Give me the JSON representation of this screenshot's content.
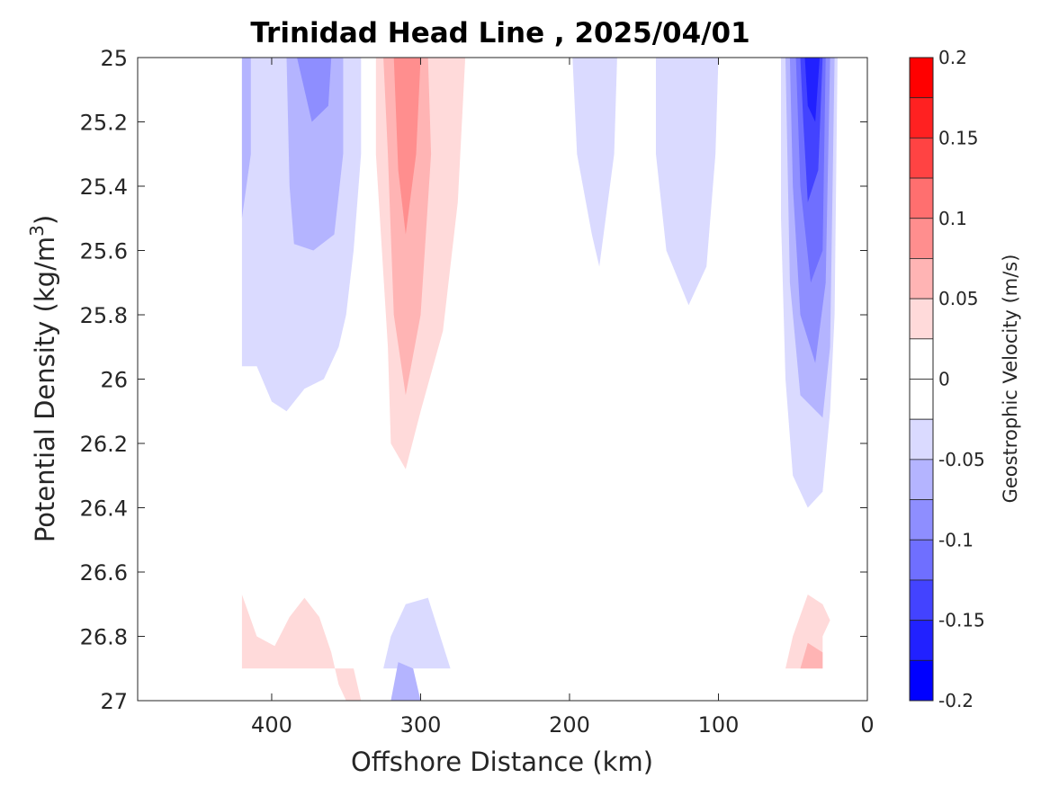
{
  "chart_data": {
    "type": "contour",
    "title": "Trinidad Head Line , 2025/04/01",
    "xlabel": "Offshore Distance (km)",
    "ylabel_main": "Potential Density (kg/m",
    "ylabel_sup": "3",
    "ylabel_close": ")",
    "colorbar_label": "Geostrophic Velocity (m/s)",
    "xlim": [
      490,
      0
    ],
    "ylim": [
      27,
      25
    ],
    "x_reversed": true,
    "y_reversed": true,
    "xticks": [
      400,
      300,
      200,
      100,
      0
    ],
    "yticks": [
      25,
      25.2,
      25.4,
      25.6,
      25.8,
      26,
      26.2,
      26.4,
      26.6,
      26.8,
      27
    ],
    "colorbar_ticks": [
      {
        "value": 0.2,
        "label": "0.2"
      },
      {
        "value": 0.15,
        "label": "0.15"
      },
      {
        "value": 0.1,
        "label": "0.1"
      },
      {
        "value": 0.05,
        "label": "0.05"
      },
      {
        "value": 0,
        "label": "0"
      },
      {
        "value": -0.05,
        "label": "-0.05"
      },
      {
        "value": -0.1,
        "label": "-0.1"
      },
      {
        "value": -0.15,
        "label": "-0.15"
      },
      {
        "value": -0.2,
        "label": "-0.2"
      }
    ],
    "colorbar_levels": [
      {
        "min": 0.175,
        "max": 0.2,
        "color": "#ff0000"
      },
      {
        "min": 0.15,
        "max": 0.175,
        "color": "#ff2121"
      },
      {
        "min": 0.125,
        "max": 0.15,
        "color": "#ff4343"
      },
      {
        "min": 0.1,
        "max": 0.125,
        "color": "#ff6f6f"
      },
      {
        "min": 0.075,
        "max": 0.1,
        "color": "#ff8e8e"
      },
      {
        "min": 0.05,
        "max": 0.075,
        "color": "#ffb4b4"
      },
      {
        "min": 0.025,
        "max": 0.05,
        "color": "#ffdada"
      },
      {
        "min": 0,
        "max": 0.025,
        "color": "#ffffff"
      },
      {
        "min": -0.025,
        "max": 0,
        "color": "#ffffff"
      },
      {
        "min": -0.05,
        "max": -0.025,
        "color": "#dadaff"
      },
      {
        "min": -0.075,
        "max": -0.05,
        "color": "#b4b4ff"
      },
      {
        "min": -0.1,
        "max": -0.075,
        "color": "#8e8eff"
      },
      {
        "min": -0.125,
        "max": -0.1,
        "color": "#6f6fff"
      },
      {
        "min": -0.15,
        "max": -0.125,
        "color": "#4343ff"
      },
      {
        "min": -0.175,
        "max": -0.15,
        "color": "#2121ff"
      },
      {
        "min": -0.2,
        "max": -0.175,
        "color": "#0000ff"
      }
    ],
    "regions": [
      {
        "name": "west-neg-outer",
        "level": -0.0375,
        "points": [
          [
            420,
            25
          ],
          [
            340,
            25
          ],
          [
            340,
            25.3
          ],
          [
            345,
            25.6
          ],
          [
            350,
            25.8
          ],
          [
            355,
            25.9
          ],
          [
            365,
            26
          ],
          [
            378,
            26.03
          ],
          [
            390,
            26.1
          ],
          [
            400,
            26.07
          ],
          [
            410,
            25.96
          ],
          [
            420,
            25.96
          ]
        ]
      },
      {
        "name": "west-neg-l2",
        "level": -0.0625,
        "points": [
          [
            390,
            25
          ],
          [
            352,
            25
          ],
          [
            352,
            25.3
          ],
          [
            358,
            25.55
          ],
          [
            372,
            25.6
          ],
          [
            385,
            25.58
          ],
          [
            388,
            25.4
          ]
        ]
      },
      {
        "name": "west-neg-l3",
        "level": -0.0875,
        "points": [
          [
            383,
            25
          ],
          [
            360,
            25
          ],
          [
            362,
            25.15
          ],
          [
            373,
            25.2
          ]
        ]
      },
      {
        "name": "west-edge-neg",
        "level": -0.0625,
        "points": [
          [
            420,
            25
          ],
          [
            414,
            25
          ],
          [
            414,
            25.3
          ],
          [
            420,
            25.5
          ]
        ]
      },
      {
        "name": "mid-pos-outer",
        "level": 0.0375,
        "points": [
          [
            330,
            25
          ],
          [
            270,
            25
          ],
          [
            275,
            25.45
          ],
          [
            285,
            25.85
          ],
          [
            300,
            26.1
          ],
          [
            310,
            26.28
          ],
          [
            320,
            26.2
          ],
          [
            322,
            25.9
          ],
          [
            330,
            25.3
          ]
        ]
      },
      {
        "name": "mid-pos-l2",
        "level": 0.0625,
        "points": [
          [
            325,
            25
          ],
          [
            295,
            25
          ],
          [
            293,
            25.3
          ],
          [
            300,
            25.8
          ],
          [
            310,
            26.05
          ],
          [
            318,
            25.8
          ],
          [
            322,
            25.3
          ]
        ]
      },
      {
        "name": "mid-pos-l3",
        "level": 0.0875,
        "points": [
          [
            318,
            25
          ],
          [
            300,
            25
          ],
          [
            303,
            25.3
          ],
          [
            310,
            25.55
          ],
          [
            315,
            25.35
          ]
        ]
      },
      {
        "name": "mid-neg-1",
        "level": -0.0375,
        "points": [
          [
            198,
            25
          ],
          [
            168,
            25
          ],
          [
            170,
            25.3
          ],
          [
            180,
            25.65
          ],
          [
            185,
            25.55
          ],
          [
            195,
            25.3
          ]
        ]
      },
      {
        "name": "mid-neg-2",
        "level": -0.0375,
        "points": [
          [
            142,
            25
          ],
          [
            100,
            25
          ],
          [
            102,
            25.3
          ],
          [
            108,
            25.65
          ],
          [
            120,
            25.77
          ],
          [
            135,
            25.6
          ],
          [
            142,
            25.3
          ]
        ]
      },
      {
        "name": "east-neg-outer",
        "level": -0.0375,
        "points": [
          [
            58,
            25
          ],
          [
            20,
            25
          ],
          [
            22,
            25.8
          ],
          [
            25,
            26.1
          ],
          [
            30,
            26.35
          ],
          [
            40,
            26.4
          ],
          [
            50,
            26.3
          ],
          [
            55,
            26
          ],
          [
            58,
            25.5
          ]
        ]
      },
      {
        "name": "east-neg-l2",
        "level": -0.0625,
        "points": [
          [
            55,
            25
          ],
          [
            22,
            25
          ],
          [
            25,
            25.9
          ],
          [
            30,
            26.12
          ],
          [
            45,
            26.05
          ],
          [
            52,
            25.7
          ]
        ]
      },
      {
        "name": "east-neg-l3",
        "level": -0.0875,
        "points": [
          [
            52,
            25
          ],
          [
            25,
            25
          ],
          [
            28,
            25.7
          ],
          [
            35,
            25.95
          ],
          [
            45,
            25.8
          ],
          [
            50,
            25.4
          ]
        ]
      },
      {
        "name": "east-neg-l4",
        "level": -0.1125,
        "points": [
          [
            48,
            25
          ],
          [
            28,
            25
          ],
          [
            30,
            25.6
          ],
          [
            38,
            25.7
          ],
          [
            45,
            25.4
          ]
        ]
      },
      {
        "name": "east-neg-l5",
        "level": -0.1375,
        "points": [
          [
            45,
            25
          ],
          [
            30,
            25
          ],
          [
            33,
            25.35
          ],
          [
            40,
            25.45
          ],
          [
            43,
            25.2
          ]
        ]
      },
      {
        "name": "east-neg-l6",
        "level": -0.1625,
        "points": [
          [
            42,
            25
          ],
          [
            32,
            25
          ],
          [
            35,
            25.2
          ],
          [
            40,
            25.15
          ]
        ]
      },
      {
        "name": "bottom-west-pos",
        "level": 0.0375,
        "points": [
          [
            420,
            26.67
          ],
          [
            410,
            26.8
          ],
          [
            398,
            26.83
          ],
          [
            388,
            26.74
          ],
          [
            378,
            26.68
          ],
          [
            368,
            26.74
          ],
          [
            360,
            26.85
          ],
          [
            355,
            26.95
          ],
          [
            350,
            27
          ],
          [
            340,
            27
          ],
          [
            345,
            26.9
          ],
          [
            420,
            26.9
          ]
        ]
      },
      {
        "name": "bottom-mid-neg",
        "level": -0.0375,
        "points": [
          [
            325,
            26.9
          ],
          [
            320,
            26.8
          ],
          [
            310,
            26.7
          ],
          [
            295,
            26.68
          ],
          [
            280,
            26.9
          ]
        ]
      },
      {
        "name": "bottom-mid-neg-l2",
        "level": -0.0625,
        "points": [
          [
            320,
            27
          ],
          [
            315,
            26.88
          ],
          [
            305,
            26.9
          ],
          [
            300,
            27
          ]
        ]
      },
      {
        "name": "bottom-east-pos",
        "level": 0.0375,
        "points": [
          [
            55,
            26.9
          ],
          [
            50,
            26.8
          ],
          [
            40,
            26.67
          ],
          [
            30,
            26.7
          ],
          [
            25,
            26.75
          ],
          [
            30,
            26.8
          ],
          [
            30,
            26.9
          ]
        ]
      },
      {
        "name": "bottom-east-pos-l2",
        "level": 0.0625,
        "points": [
          [
            45,
            26.9
          ],
          [
            40,
            26.82
          ],
          [
            30,
            26.85
          ],
          [
            30,
            26.9
          ]
        ]
      }
    ]
  }
}
